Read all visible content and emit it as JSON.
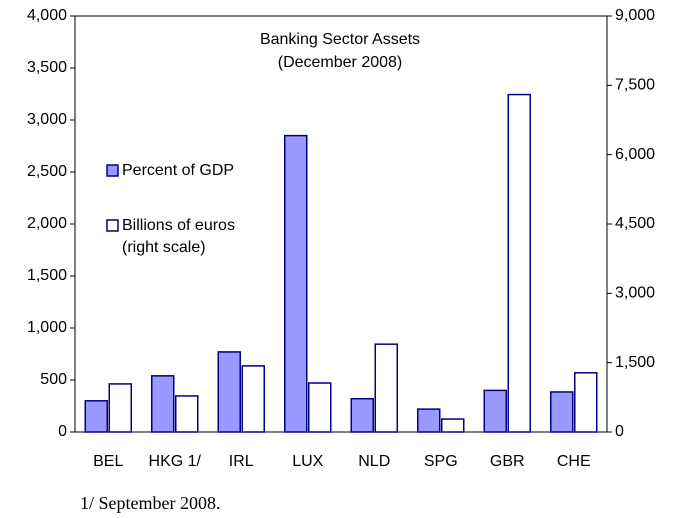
{
  "chart_data": {
    "type": "bar",
    "title": "Banking Sector Assets",
    "subtitle": "(December 2008)",
    "note": "1/ September 2008.",
    "categories": [
      "BEL",
      "HKG 1/",
      "IRL",
      "LUX",
      "NLD",
      "SPG",
      "GBR",
      "CHE"
    ],
    "series": [
      {
        "name": "Percent of GDP",
        "color": "#9999ff",
        "values": [
          300,
          540,
          770,
          2850,
          320,
          220,
          400,
          385
        ]
      },
      {
        "name": "Billions of euros (right scale)",
        "color": "#ffffff",
        "axis": "y2",
        "values": [
          1040,
          780,
          1430,
          1060,
          1900,
          280,
          7300,
          1280
        ]
      }
    ],
    "ylim": [
      0,
      4000
    ],
    "yticks": [
      0,
      500,
      {
        "value": 1000,
        "label": "1,000"
      },
      {
        "value": 1500,
        "label": "1,500"
      },
      {
        "value": 2000,
        "label": "2,000"
      },
      {
        "value": 2500,
        "label": "2,500"
      },
      {
        "value": 3000,
        "label": "3,000"
      },
      {
        "value": 3500,
        "label": "3,500"
      },
      {
        "value": 4000,
        "label": "4,000"
      }
    ],
    "y2lim": [
      0,
      9000
    ],
    "y2ticks": [
      0,
      {
        "value": 1500,
        "label": "1,500"
      },
      {
        "value": 3000,
        "label": "3,000"
      },
      {
        "value": 4500,
        "label": "4,500"
      },
      {
        "value": 6000,
        "label": "6,000"
      },
      {
        "value": 7500,
        "label": "7,500"
      },
      {
        "value": 9000,
        "label": "9,000"
      }
    ],
    "grid": false
  }
}
